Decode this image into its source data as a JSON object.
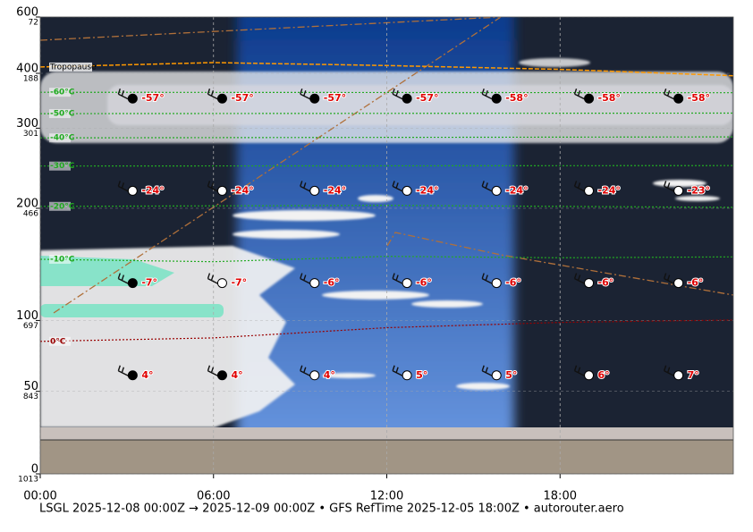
{
  "chart_data": {
    "type": "cross-section",
    "xlim": [
      0,
      24
    ],
    "xticks": [
      {
        "value": 0,
        "label": "00:00"
      },
      {
        "value": 6,
        "label": "06:00"
      },
      {
        "value": 12,
        "label": "12:00"
      },
      {
        "value": 18,
        "label": "18:00"
      }
    ],
    "ylim": [
      1013,
      72
    ],
    "yticks": [
      1013,
      843,
      697,
      466,
      301,
      188,
      72
    ],
    "flight_levels": [
      0,
      50,
      100,
      200,
      300,
      400,
      600
    ],
    "grid": true,
    "footer": "LSGL 2025-12-08 00:00Z → 2025-12-09 00:00Z • GFS RefTime 2025-12-05 18:00Z • autorouter.aero",
    "tropopause": {
      "name": "Tropopause",
      "color": "#ff9900",
      "x": [
        0,
        6,
        12,
        18,
        24
      ],
      "values": [
        175,
        166,
        172,
        180,
        193
      ]
    },
    "isotherms": [
      {
        "name": "-60°C",
        "color": "#22aa22",
        "x": [
          0,
          24
        ],
        "values": [
          227,
          228
        ]
      },
      {
        "name": "-50°C",
        "color": "#22aa22",
        "x": [
          0,
          24
        ],
        "values": [
          271,
          270
        ]
      },
      {
        "name": "-40°C",
        "color": "#22aa22",
        "x": [
          0,
          24
        ],
        "values": [
          321,
          319
        ]
      },
      {
        "name": "-30°C",
        "color": "#22aa22",
        "x": [
          0,
          24
        ],
        "values": [
          379,
          378
        ]
      },
      {
        "name": "-20°C",
        "color": "#22aa22",
        "x": [
          0,
          12,
          24
        ],
        "values": [
          462,
          460,
          464
        ]
      },
      {
        "name": "-10°C",
        "color": "#22aa22",
        "x": [
          0,
          6,
          12,
          18,
          24
        ],
        "values": [
          571,
          576,
          565,
          568,
          566
        ]
      },
      {
        "name": "0°C",
        "color": "#990000",
        "x": [
          0,
          6,
          12,
          18,
          24
        ],
        "values": [
          740,
          733,
          712,
          701,
          696
        ]
      }
    ],
    "stations": {
      "x": [
        3.2,
        6.3,
        9.5,
        12.7,
        15.8,
        19.0,
        22.1
      ],
      "levels": [
        240,
        430,
        620,
        810
      ],
      "temperatures": [
        [
          -57,
          -57,
          -57,
          -57,
          -58,
          -58,
          -58
        ],
        [
          -24,
          -24,
          -24,
          -24,
          -24,
          -24,
          -23
        ],
        [
          -7,
          -7,
          -6,
          -6,
          -6,
          -6,
          -6
        ],
        [
          4,
          4,
          4,
          5,
          5,
          6,
          7
        ]
      ],
      "value_labels": [
        [
          "-57°",
          "-57°",
          "-57°",
          "-57°",
          "-58°",
          "-58°",
          "-58°"
        ],
        [
          "-24°",
          "-24°",
          "-24°",
          "-24°",
          "-24°",
          "-24°",
          "-23°"
        ],
        [
          "-7°",
          "-7°",
          "-6°",
          "-6°",
          "-6°",
          "-6°",
          "-6°"
        ],
        [
          "4°",
          "4°",
          "4°",
          "5°",
          "5°",
          "6°",
          "7°"
        ]
      ]
    }
  }
}
